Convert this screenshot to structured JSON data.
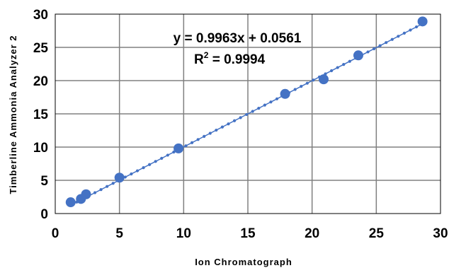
{
  "chart_data": {
    "type": "scatter",
    "xlabel": "Ion Chromatograph",
    "ylabel": "Timberline Ammonia Analyzer 2",
    "xlim": [
      0,
      30
    ],
    "ylim": [
      0,
      30
    ],
    "x_ticks": [
      0,
      5,
      10,
      15,
      20,
      25,
      30
    ],
    "y_ticks": [
      0,
      5,
      10,
      15,
      20,
      25,
      30
    ],
    "grid": true,
    "points": [
      {
        "x": 1.2,
        "y": 1.7
      },
      {
        "x": 2.0,
        "y": 2.2
      },
      {
        "x": 2.4,
        "y": 2.9
      },
      {
        "x": 5.0,
        "y": 5.4
      },
      {
        "x": 9.6,
        "y": 9.8
      },
      {
        "x": 17.9,
        "y": 18.0
      },
      {
        "x": 20.9,
        "y": 20.2
      },
      {
        "x": 23.6,
        "y": 23.8
      },
      {
        "x": 28.6,
        "y": 28.9
      }
    ],
    "trendline": {
      "slope": 0.9963,
      "intercept": 0.0561,
      "x_range": [
        1.2,
        28.6
      ],
      "style": "dotted"
    },
    "annotations": {
      "equation": "y = 0.9963x + 0.0561",
      "r2_prefix": "R",
      "r2_exp": "2",
      "r2_value": " = 0.9994"
    },
    "colors": {
      "marker": "#4472C4",
      "trendline": "#4472C4",
      "grid": "#808080",
      "axis": "#000000"
    }
  }
}
